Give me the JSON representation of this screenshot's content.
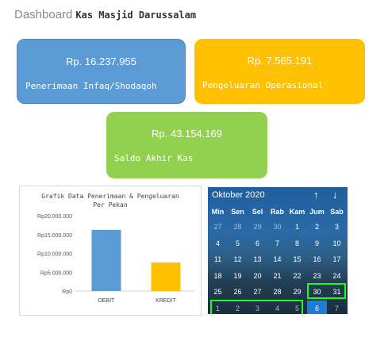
{
  "header": {
    "title": "Dashboard",
    "subtitle": "Kas Masjid Darussalam"
  },
  "cards": [
    {
      "amount": "Rp. 16.237.955",
      "label": "Penerimaan Infaq/Shodaqoh",
      "color": "#5b9bd5"
    },
    {
      "amount": "Rp. 7.565.191",
      "label": "Pengeluaran Operasional",
      "color": "#ffc000"
    },
    {
      "amount": "Rp. 43.154.169",
      "label": "Saldo Akhir Kas",
      "color": "#92d050"
    }
  ],
  "chart_data": {
    "type": "bar",
    "title": "Grafik Data Penerimaan & Pengeluaran Per Pekan",
    "categories": [
      "DEBIT",
      "KREDIT"
    ],
    "values": [
      16237955,
      7565191
    ],
    "colors": [
      "#5b9bd5",
      "#ffc000"
    ],
    "ylim": [
      0,
      20000000
    ],
    "yticks": [
      "Rp0",
      "Rp5.000.000",
      "Rp10.000.000",
      "Rp15.000.000",
      "Rp20.000.000"
    ],
    "grid": false
  },
  "calendar": {
    "month_label": "Oktober 2020",
    "up_icon": "↑",
    "down_icon": "↓",
    "weekdays": [
      "Min",
      "Sen",
      "Sel",
      "Rab",
      "Kam",
      "Jum",
      "Sab"
    ],
    "weeks": [
      [
        "27",
        "28",
        "29",
        "30",
        "1",
        "2",
        "3"
      ],
      [
        "4",
        "5",
        "6",
        "7",
        "8",
        "9",
        "10"
      ],
      [
        "11",
        "12",
        "13",
        "14",
        "15",
        "16",
        "17"
      ],
      [
        "18",
        "19",
        "20",
        "21",
        "22",
        "23",
        "24"
      ],
      [
        "25",
        "26",
        "27",
        "28",
        "29",
        "30",
        "31"
      ],
      [
        "1",
        "2",
        "3",
        "4",
        "5",
        "6",
        "7"
      ]
    ],
    "today": "6"
  }
}
